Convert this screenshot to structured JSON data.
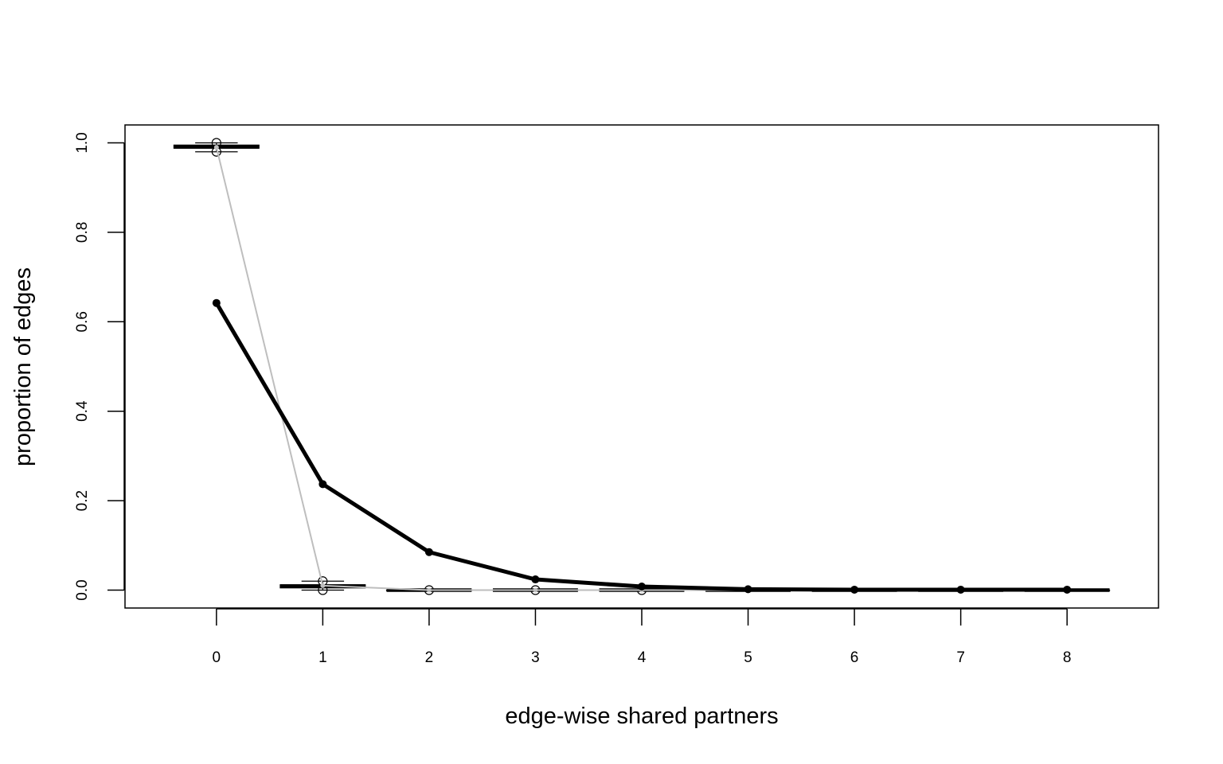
{
  "chart_data": {
    "type": "line",
    "title": "",
    "xlabel": "edge-wise shared partners",
    "ylabel": "proportion of edges",
    "x": [
      0,
      1,
      2,
      3,
      4,
      5,
      6,
      7,
      8
    ],
    "x_tick_labels": [
      "0",
      "1",
      "2",
      "3",
      "4",
      "5",
      "6",
      "7",
      "8"
    ],
    "y_tick_labels": [
      "0.0",
      "0.2",
      "0.4",
      "0.6",
      "0.8",
      "1.0"
    ],
    "y_ticks": [
      0.0,
      0.2,
      0.4,
      0.6,
      0.8,
      1.0
    ],
    "xlim": [
      -0.86,
      8.86
    ],
    "ylim": [
      -0.04,
      1.04
    ],
    "grid": false,
    "legend": "none",
    "series": [
      {
        "role": "observed",
        "color": "#000000",
        "values": [
          0.642,
          0.237,
          0.085,
          0.024,
          0.008,
          0.002,
          0.001,
          0.001,
          0.001
        ]
      },
      {
        "role": "simulated-median",
        "color": "#bebebe",
        "values": [
          0.99,
          0.01,
          0.0,
          0.0,
          0.0,
          0.0,
          0.0,
          0.0,
          0.0
        ]
      }
    ],
    "boxplots": [
      {
        "x": 0,
        "min": 0.98,
        "q1": 0.988,
        "median": 0.991,
        "q3": 0.995,
        "max": 1.0,
        "outliers": [
          1.0,
          0.98
        ]
      },
      {
        "x": 1,
        "min": 0.0,
        "q1": 0.005,
        "median": 0.009,
        "q3": 0.012,
        "max": 0.02,
        "outliers": [
          0.02,
          0.0
        ]
      },
      {
        "x": 2,
        "min": 0.0,
        "q1": 0.0,
        "median": 0.0,
        "q3": 0.0,
        "max": 0.0,
        "outliers": [
          0.0
        ]
      },
      {
        "x": 3,
        "min": 0.0,
        "q1": 0.0,
        "median": 0.0,
        "q3": 0.0,
        "max": 0.0,
        "outliers": [
          0.0
        ]
      },
      {
        "x": 4,
        "min": 0.0,
        "q1": 0.0,
        "median": 0.0,
        "q3": 0.0,
        "max": 0.0,
        "outliers": [
          0.0
        ]
      },
      {
        "x": 5,
        "min": 0.0,
        "q1": 0.0,
        "median": 0.0,
        "q3": 0.0,
        "max": 0.0,
        "outliers": []
      },
      {
        "x": 6,
        "min": 0.0,
        "q1": 0.0,
        "median": 0.0,
        "q3": 0.0,
        "max": 0.0,
        "outliers": []
      },
      {
        "x": 7,
        "min": 0.0,
        "q1": 0.0,
        "median": 0.0,
        "q3": 0.0,
        "max": 0.0,
        "outliers": []
      },
      {
        "x": 8,
        "min": 0.0,
        "q1": 0.0,
        "median": 0.0,
        "q3": 0.0,
        "max": 0.0,
        "outliers": []
      }
    ]
  }
}
